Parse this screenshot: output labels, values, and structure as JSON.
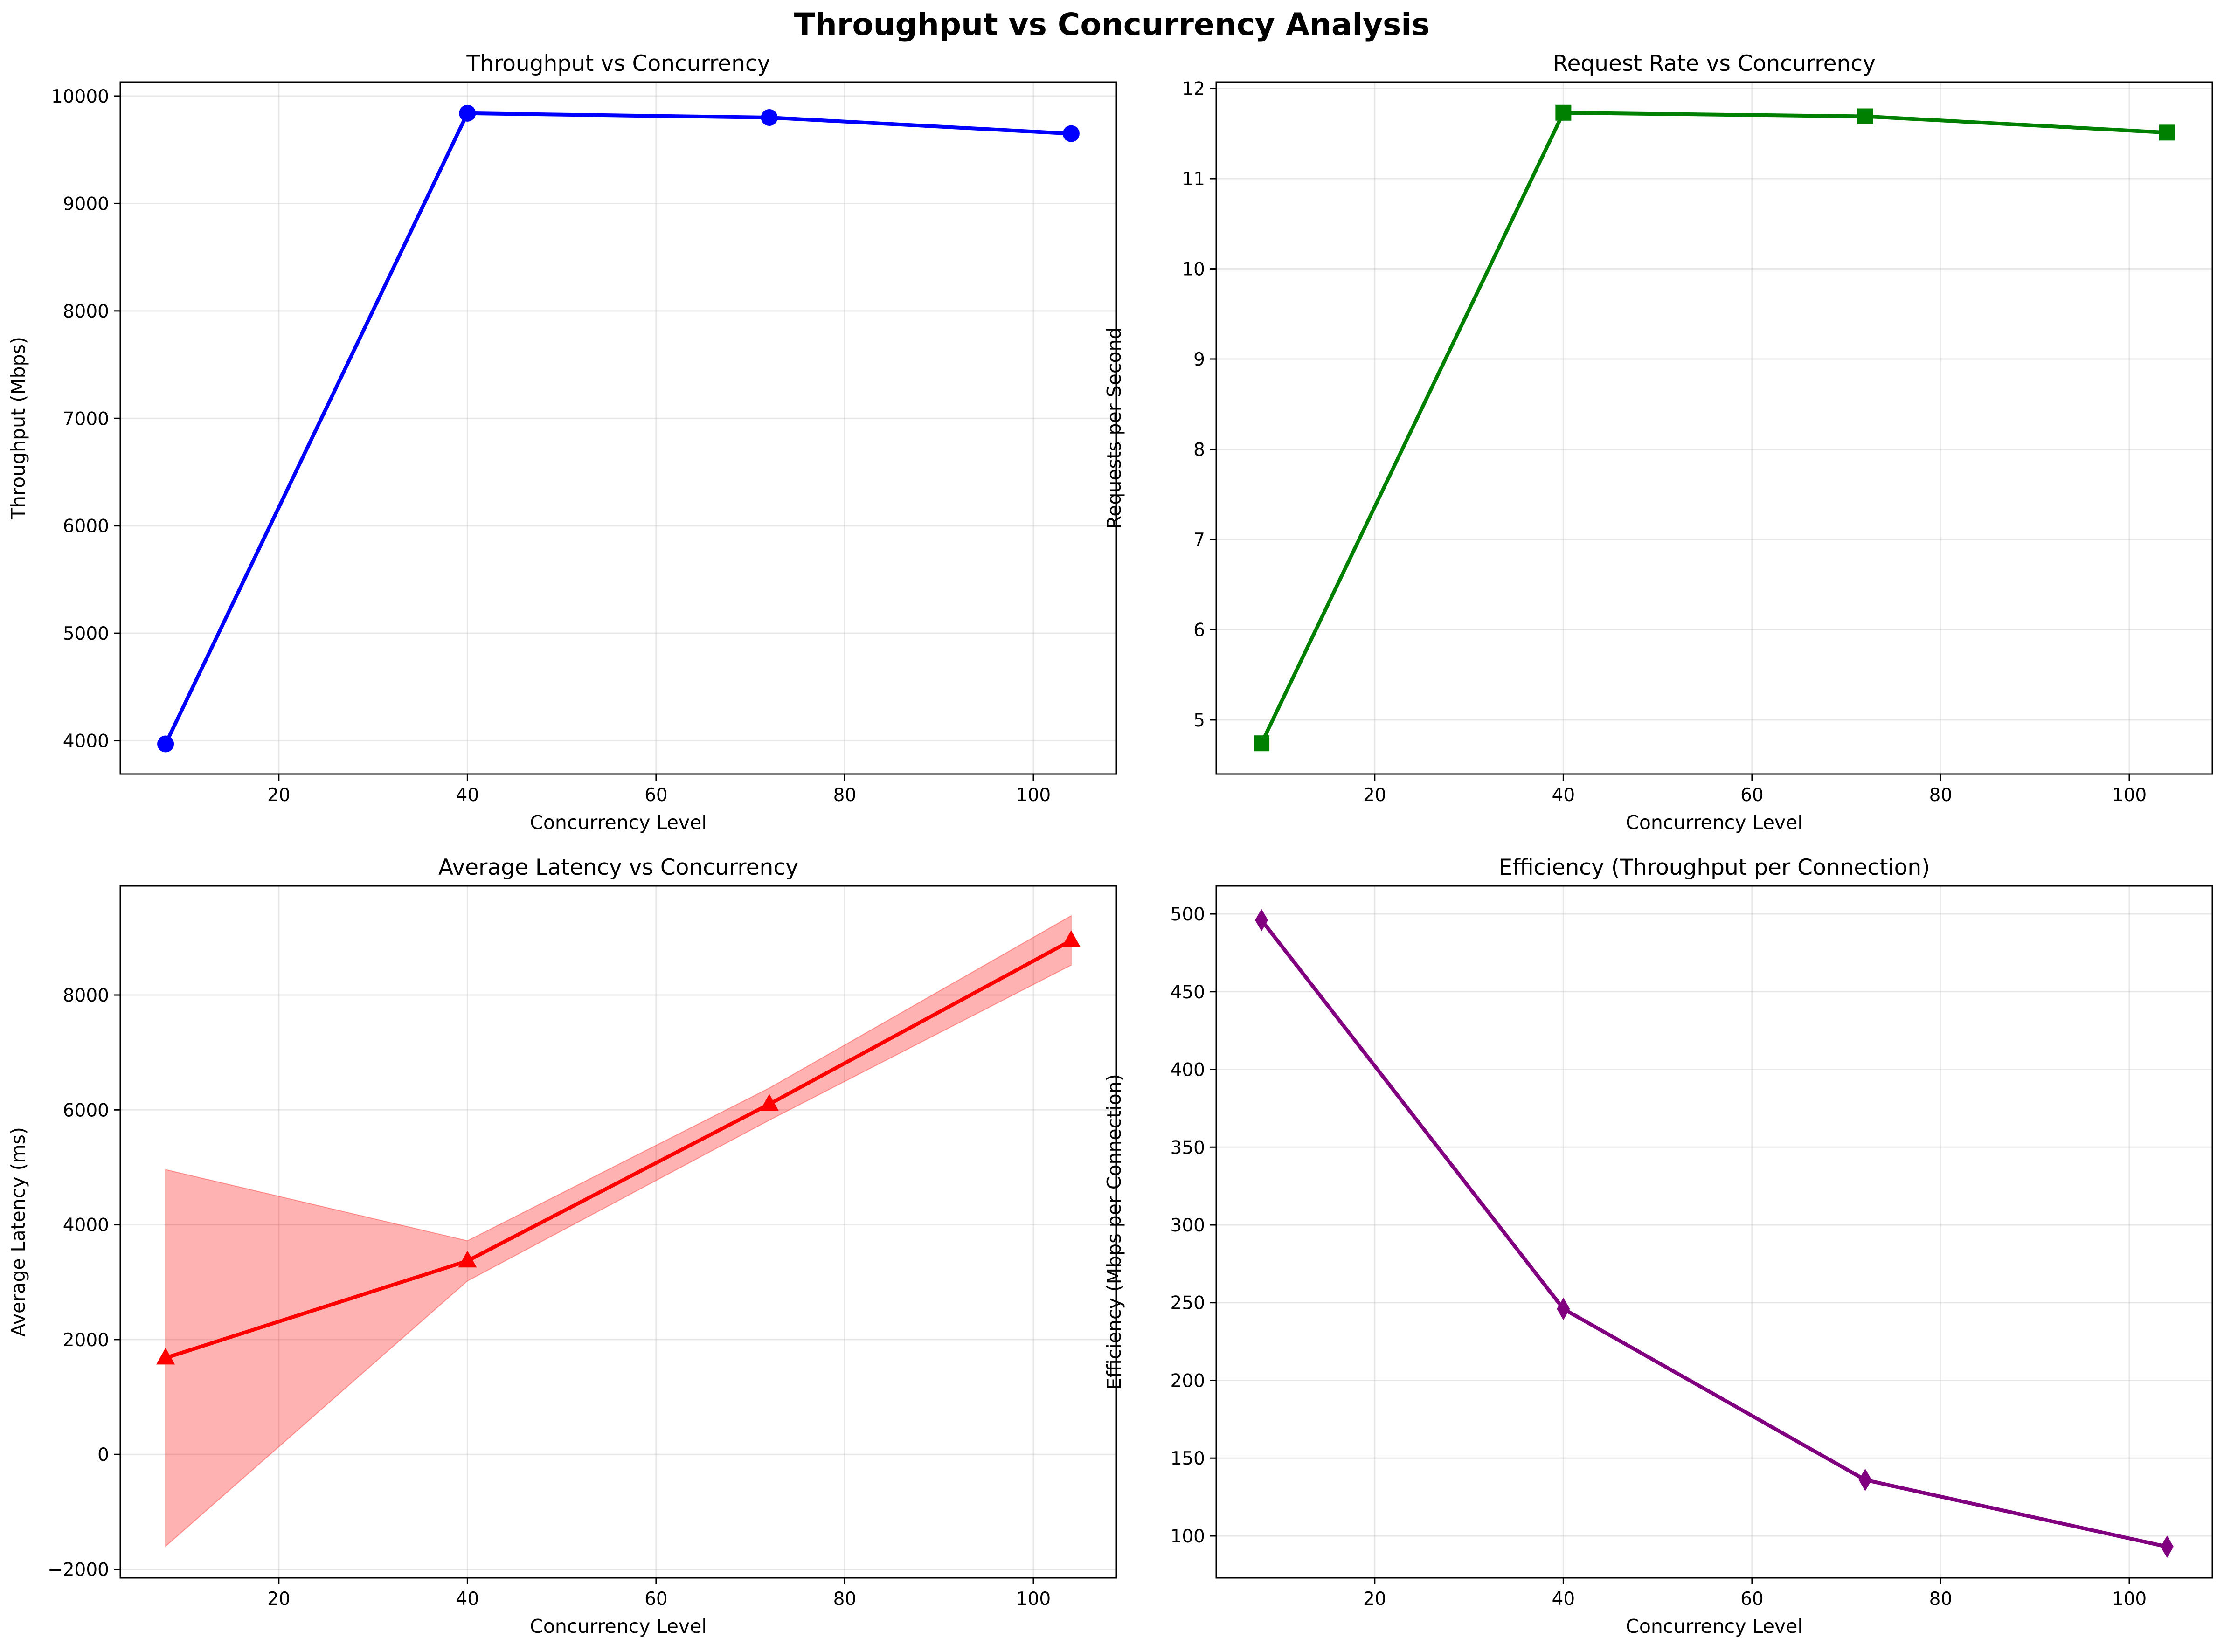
{
  "figure": {
    "title": "Throughput vs Concurrency Analysis"
  },
  "chart_data": [
    {
      "type": "line",
      "title": "Throughput vs Concurrency",
      "xlabel": "Concurrency Level",
      "ylabel": "Throughput (Mbps)",
      "xlim": [
        3.2,
        108.8
      ],
      "ylim": [
        3690,
        10130
      ],
      "xticks": [
        20,
        40,
        60,
        80,
        100
      ],
      "yticks": [
        4000,
        5000,
        6000,
        7000,
        8000,
        9000,
        10000
      ],
      "grid": true,
      "color": "#0000ff",
      "marker": "circle",
      "series": [
        {
          "x": [
            8,
            40,
            72,
            104
          ],
          "y": [
            3970,
            9840,
            9800,
            9650
          ]
        }
      ]
    },
    {
      "type": "line",
      "title": "Request Rate vs Concurrency",
      "xlabel": "Concurrency Level",
      "ylabel": "Requests per Second",
      "xlim": [
        3.2,
        108.8
      ],
      "ylim": [
        4.4,
        12.07
      ],
      "xticks": [
        20,
        40,
        60,
        80,
        100
      ],
      "yticks": [
        5,
        6,
        7,
        8,
        9,
        10,
        11,
        12
      ],
      "grid": true,
      "color": "#008000",
      "marker": "square",
      "series": [
        {
          "x": [
            8,
            40,
            72,
            104
          ],
          "y": [
            4.74,
            11.73,
            11.69,
            11.51
          ]
        }
      ]
    },
    {
      "type": "area",
      "title": "Average Latency vs Concurrency",
      "xlabel": "Concurrency Level",
      "ylabel": "Average Latency (ms)",
      "xlim": [
        3.2,
        108.8
      ],
      "ylim": [
        -2150,
        9900
      ],
      "xticks": [
        20,
        40,
        60,
        80,
        100
      ],
      "yticks": [
        -2000,
        0,
        2000,
        4000,
        6000,
        8000
      ],
      "grid": true,
      "color": "#ff0000",
      "band_color": "#ff0000",
      "marker": "triangle",
      "series": [
        {
          "x": [
            8,
            40,
            72,
            104
          ],
          "y": [
            1680,
            3370,
            6100,
            8950
          ],
          "upper": [
            4960,
            3720,
            6380,
            9380
          ],
          "lower": [
            -1600,
            3020,
            5820,
            8520
          ]
        }
      ]
    },
    {
      "type": "line",
      "title": "Efficiency (Throughput per Connection)",
      "xlabel": "Concurrency Level",
      "ylabel": "Efficiency (Mbps per Connection)",
      "xlim": [
        3.2,
        108.8
      ],
      "ylim": [
        73,
        518
      ],
      "xticks": [
        20,
        40,
        60,
        80,
        100
      ],
      "yticks": [
        100,
        150,
        200,
        250,
        300,
        350,
        400,
        450,
        500
      ],
      "grid": true,
      "color": "#800080",
      "marker": "diamond",
      "series": [
        {
          "x": [
            8,
            40,
            72,
            104
          ],
          "y": [
            496,
            246,
            136,
            93
          ]
        }
      ]
    }
  ]
}
